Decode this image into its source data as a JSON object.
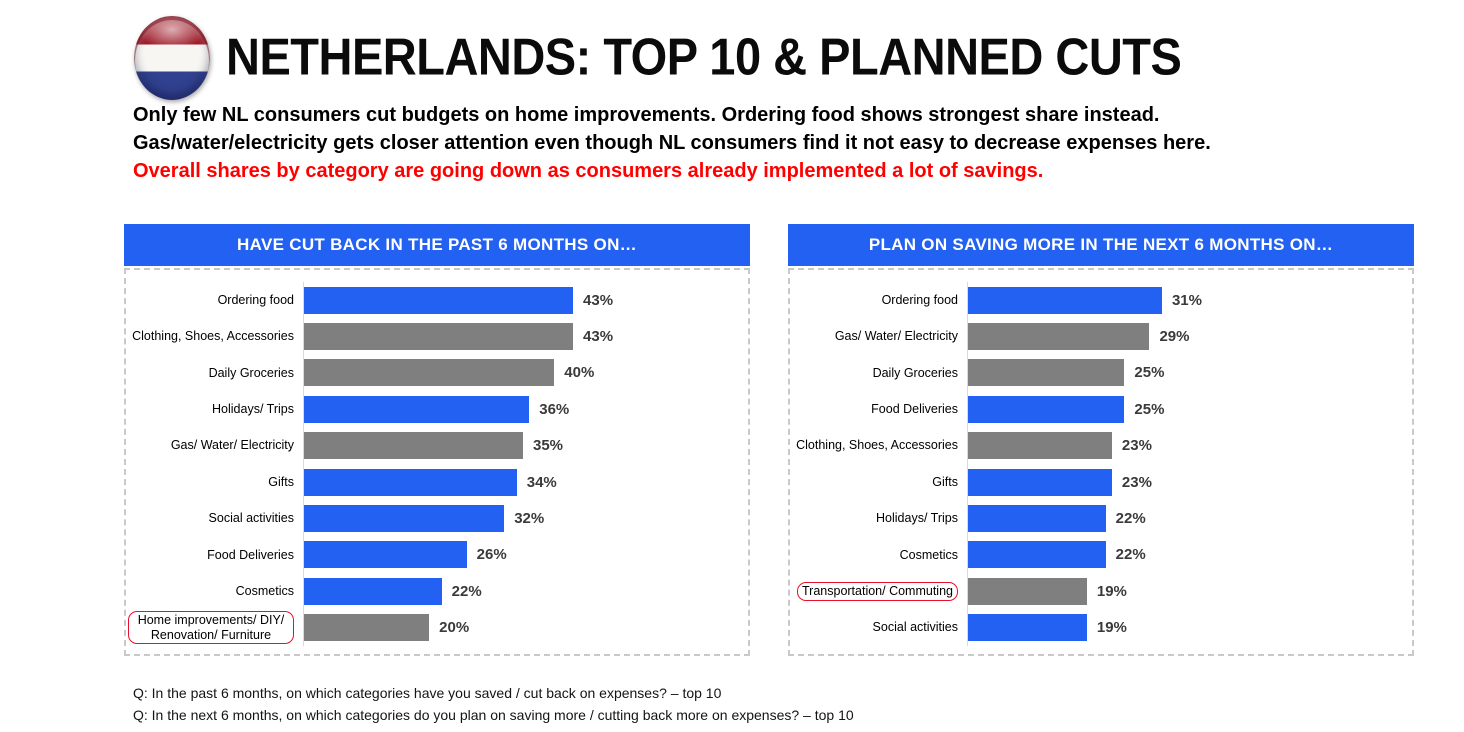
{
  "header": {
    "title": "NETHERLANDS: TOP 10 & PLANNED CUTS",
    "flag_icon": "netherlands-flag-icon",
    "subtitle_line1": "Only few NL consumers cut budgets on home improvements. Ordering food shows strongest share instead.",
    "subtitle_line2": "Gas/water/electricity gets closer attention even though NL consumers find it not easy to decrease expenses here.",
    "subtitle_line3": "Overall shares by category are going down as consumers already implemented a lot of savings."
  },
  "colors": {
    "accent_blue": "#2261F2",
    "bar_gray": "#7F7F7F",
    "header_text": "#FFFFFF",
    "highlight_red": "#E8112D",
    "subtitle_red": "#FF0000",
    "value_text": "#3A3A3A",
    "panel_border": "#C9C9C9"
  },
  "chart_data": [
    {
      "type": "bar",
      "orientation": "horizontal",
      "title": "HAVE CUT BACK IN THE PAST 6 MONTHS ON…",
      "value_format": "percent",
      "xlim": [
        0,
        70
      ],
      "grid": false,
      "bars": [
        {
          "label": "Ordering food",
          "value": 43,
          "color": "blue",
          "boxed": false
        },
        {
          "label": "Clothing, Shoes, Accessories",
          "value": 43,
          "color": "gray",
          "boxed": false
        },
        {
          "label": "Daily Groceries",
          "value": 40,
          "color": "gray",
          "boxed": false
        },
        {
          "label": "Holidays/ Trips",
          "value": 36,
          "color": "blue",
          "boxed": false
        },
        {
          "label": "Gas/ Water/ Electricity",
          "value": 35,
          "color": "gray",
          "boxed": false
        },
        {
          "label": "Gifts",
          "value": 34,
          "color": "blue",
          "boxed": false
        },
        {
          "label": "Social activities",
          "value": 32,
          "color": "blue",
          "boxed": false
        },
        {
          "label": "Food Deliveries",
          "value": 26,
          "color": "blue",
          "boxed": false
        },
        {
          "label": "Cosmetics",
          "value": 22,
          "color": "blue",
          "boxed": false
        },
        {
          "label": "Home improvements/ DIY/ Renovation/ Furniture",
          "value": 20,
          "color": "gray",
          "boxed": true
        }
      ]
    },
    {
      "type": "bar",
      "orientation": "horizontal",
      "title": "PLAN ON SAVING MORE IN THE NEXT 6 MONTHS ON…",
      "value_format": "percent",
      "xlim": [
        0,
        70
      ],
      "grid": false,
      "bars": [
        {
          "label": "Ordering food",
          "value": 31,
          "color": "blue",
          "boxed": false
        },
        {
          "label": "Gas/ Water/ Electricity",
          "value": 29,
          "color": "gray",
          "boxed": false
        },
        {
          "label": "Daily Groceries",
          "value": 25,
          "color": "gray",
          "boxed": false
        },
        {
          "label": "Food Deliveries",
          "value": 25,
          "color": "blue",
          "boxed": false
        },
        {
          "label": "Clothing, Shoes, Accessories",
          "value": 23,
          "color": "gray",
          "boxed": false
        },
        {
          "label": "Gifts",
          "value": 23,
          "color": "blue",
          "boxed": false
        },
        {
          "label": "Holidays/ Trips",
          "value": 22,
          "color": "blue",
          "boxed": false
        },
        {
          "label": "Cosmetics",
          "value": 22,
          "color": "blue",
          "boxed": false
        },
        {
          "label": "Transportation/ Commuting",
          "value": 19,
          "color": "gray",
          "boxed": true
        },
        {
          "label": "Social activities",
          "value": 19,
          "color": "blue",
          "boxed": false
        }
      ]
    }
  ],
  "footer": {
    "line1": "Q: In the past 6 months, on which categories have you saved / cut back on expenses? – top 10",
    "line2": "Q: In the next 6 months, on which categories do you plan on saving more / cutting back more on expenses? – top 10"
  }
}
